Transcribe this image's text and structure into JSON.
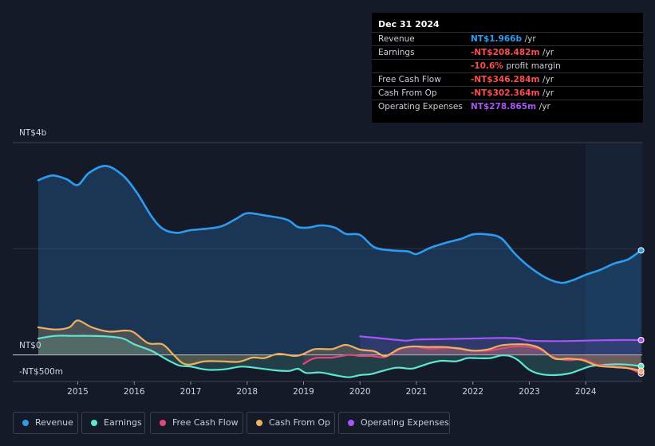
{
  "tooltip": {
    "date": "Dec 31 2024",
    "rows": [
      {
        "label": "Revenue",
        "value": "NT$1.966b",
        "unit": "/yr",
        "color": "#2d9cf0"
      },
      {
        "label": "Earnings",
        "value": "-NT$208.482m",
        "unit": "/yr",
        "color": "#ff4d4d"
      },
      {
        "label": "",
        "value": "-10.6%",
        "unit": "profit margin",
        "color": "#ff4d4d"
      },
      {
        "label": "Free Cash Flow",
        "value": "-NT$346.284m",
        "unit": "/yr",
        "color": "#ff4d4d"
      },
      {
        "label": "Cash From Op",
        "value": "-NT$302.364m",
        "unit": "/yr",
        "color": "#ff4d4d"
      },
      {
        "label": "Operating Expenses",
        "value": "NT$278.865m",
        "unit": "/yr",
        "color": "#a855f7"
      }
    ]
  },
  "legend": [
    {
      "label": "Revenue",
      "color": "#2d9cf0"
    },
    {
      "label": "Earnings",
      "color": "#5ee6d0"
    },
    {
      "label": "Free Cash Flow",
      "color": "#e0477b"
    },
    {
      "label": "Cash From Op",
      "color": "#f0b060"
    },
    {
      "label": "Operating Expenses",
      "color": "#a855f7"
    }
  ],
  "chart_data": {
    "type": "line",
    "title": "",
    "y_tick_labels": [
      "NT$4b",
      "NT$0",
      "-NT$500m"
    ],
    "ylim": [
      -0.5,
      4.0
    ],
    "xlim": [
      2014.3,
      2025.0
    ],
    "x_ticks": [
      2015,
      2016,
      2017,
      2018,
      2019,
      2020,
      2021,
      2022,
      2023,
      2024
    ],
    "x_tick_labels": [
      "2015",
      "2016",
      "2017",
      "2018",
      "2019",
      "2020",
      "2021",
      "2022",
      "2023",
      "2024"
    ],
    "series": [
      {
        "name": "Revenue",
        "color": "#2d9cf0",
        "unit": "NT$b",
        "x": [
          2014.3,
          2014.55,
          2014.8,
          2015.0,
          2015.2,
          2015.5,
          2015.8,
          2016.05,
          2016.3,
          2016.5,
          2016.75,
          2017.0,
          2017.5,
          2017.8,
          2018.0,
          2018.3,
          2018.7,
          2018.9,
          2019.1,
          2019.3,
          2019.55,
          2019.75,
          2020.0,
          2020.25,
          2020.55,
          2020.85,
          2021.0,
          2021.25,
          2021.55,
          2021.8,
          2022.0,
          2022.25,
          2022.5,
          2022.75,
          2023.0,
          2023.3,
          2023.55,
          2023.75,
          2024.0,
          2024.25,
          2024.5,
          2024.75,
          2024.98
        ],
        "y": [
          3.29,
          3.38,
          3.31,
          3.2,
          3.43,
          3.56,
          3.38,
          3.05,
          2.62,
          2.38,
          2.3,
          2.35,
          2.41,
          2.56,
          2.67,
          2.63,
          2.55,
          2.41,
          2.4,
          2.44,
          2.4,
          2.28,
          2.26,
          2.03,
          1.97,
          1.95,
          1.9,
          2.02,
          2.12,
          2.19,
          2.27,
          2.27,
          2.2,
          1.9,
          1.66,
          1.45,
          1.36,
          1.4,
          1.51,
          1.6,
          1.72,
          1.8,
          1.97
        ]
      },
      {
        "name": "Earnings",
        "color": "#5ee6d0",
        "unit": "NT$b",
        "x": [
          2014.3,
          2014.6,
          2014.9,
          2015.2,
          2015.5,
          2015.8,
          2016.0,
          2016.3,
          2016.6,
          2016.8,
          2017.0,
          2017.3,
          2017.6,
          2017.9,
          2018.2,
          2018.5,
          2018.75,
          2018.9,
          2019.05,
          2019.3,
          2019.55,
          2019.8,
          2020.0,
          2020.2,
          2020.4,
          2020.65,
          2020.9,
          2021.05,
          2021.25,
          2021.45,
          2021.7,
          2021.9,
          2022.05,
          2022.3,
          2022.5,
          2022.65,
          2022.8,
          2023.0,
          2023.2,
          2023.45,
          2023.7,
          2023.9,
          2024.1,
          2024.4,
          2024.7,
          2024.98
        ],
        "y": [
          0.31,
          0.36,
          0.36,
          0.36,
          0.35,
          0.31,
          0.2,
          0.08,
          -0.1,
          -0.2,
          -0.22,
          -0.28,
          -0.27,
          -0.22,
          -0.25,
          -0.29,
          -0.3,
          -0.26,
          -0.34,
          -0.33,
          -0.38,
          -0.42,
          -0.38,
          -0.36,
          -0.3,
          -0.24,
          -0.26,
          -0.22,
          -0.15,
          -0.11,
          -0.12,
          -0.06,
          -0.06,
          -0.06,
          -0.01,
          -0.02,
          -0.1,
          -0.28,
          -0.36,
          -0.38,
          -0.35,
          -0.28,
          -0.21,
          -0.18,
          -0.18,
          -0.21
        ]
      },
      {
        "name": "Free Cash Flow",
        "color": "#e0477b",
        "unit": "NT$b",
        "x": [
          2019.0,
          2019.2,
          2019.5,
          2019.8,
          2020.0,
          2020.2,
          2020.45,
          2020.7,
          2020.95,
          2021.2,
          2021.5,
          2021.75,
          2022.0,
          2022.25,
          2022.5,
          2022.75,
          2023.0,
          2023.2,
          2023.45,
          2023.7,
          2023.95,
          2024.2,
          2024.5,
          2024.75,
          2024.98
        ],
        "y": [
          -0.17,
          -0.06,
          -0.05,
          0.0,
          -0.02,
          -0.02,
          -0.04,
          0.11,
          0.16,
          0.12,
          0.13,
          0.13,
          0.08,
          0.08,
          0.12,
          0.16,
          0.15,
          0.1,
          -0.05,
          -0.1,
          -0.08,
          -0.18,
          -0.22,
          -0.25,
          -0.35
        ]
      },
      {
        "name": "Cash From Op",
        "color": "#f0b060",
        "unit": "NT$b",
        "x": [
          2014.3,
          2014.6,
          2014.85,
          2015.0,
          2015.25,
          2015.55,
          2015.85,
          2016.0,
          2016.25,
          2016.5,
          2016.7,
          2016.85,
          2017.0,
          2017.25,
          2017.55,
          2017.85,
          2018.1,
          2018.3,
          2018.55,
          2018.85,
          2019.0,
          2019.2,
          2019.5,
          2019.75,
          2020.0,
          2020.25,
          2020.45,
          2020.7,
          2020.95,
          2021.2,
          2021.5,
          2021.75,
          2022.0,
          2022.25,
          2022.5,
          2022.75,
          2023.0,
          2023.2,
          2023.45,
          2023.7,
          2023.95,
          2024.2,
          2024.5,
          2024.75,
          2024.98
        ],
        "y": [
          0.52,
          0.48,
          0.52,
          0.65,
          0.52,
          0.44,
          0.46,
          0.42,
          0.22,
          0.2,
          0.0,
          -0.15,
          -0.18,
          -0.12,
          -0.12,
          -0.13,
          -0.05,
          -0.06,
          0.02,
          -0.02,
          0.02,
          0.11,
          0.11,
          0.19,
          0.1,
          0.07,
          -0.02,
          0.12,
          0.16,
          0.15,
          0.15,
          0.12,
          0.08,
          0.1,
          0.18,
          0.2,
          0.19,
          0.12,
          -0.07,
          -0.07,
          -0.1,
          -0.2,
          -0.23,
          -0.25,
          -0.3
        ]
      },
      {
        "name": "Operating Expenses",
        "color": "#a855f7",
        "unit": "NT$b",
        "x": [
          2020.0,
          2020.4,
          2020.8,
          2021.0,
          2021.5,
          2022.0,
          2022.5,
          2022.8,
          2023.0,
          2023.5,
          2024.0,
          2024.5,
          2024.98
        ],
        "y": [
          0.35,
          0.31,
          0.27,
          0.29,
          0.3,
          0.31,
          0.32,
          0.31,
          0.27,
          0.26,
          0.27,
          0.28,
          0.28
        ]
      }
    ]
  }
}
